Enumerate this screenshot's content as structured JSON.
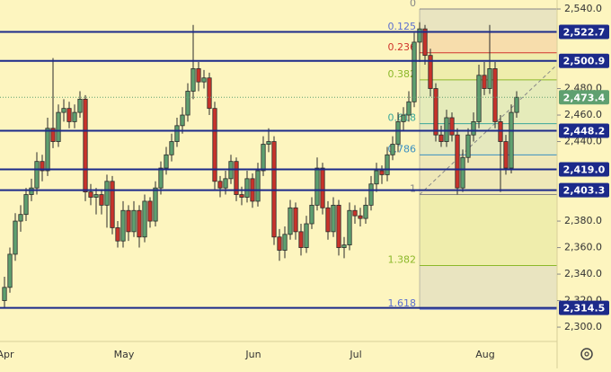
{
  "chart_data": {
    "type": "candlestick",
    "up_color": "#5fa070",
    "down_color": "#c8332b",
    "level_color": "#1c2a8a",
    "last_price_color": "#5fa070",
    "ylim": [
      2289.2,
      2546.8
    ],
    "yticks": [
      {
        "value": 2300,
        "label": "2,300.0"
      },
      {
        "value": 2320,
        "label": "2,320.0"
      },
      {
        "value": 2340,
        "label": "2,340.0"
      },
      {
        "value": 2360,
        "label": "2,360.0"
      },
      {
        "value": 2380,
        "label": "2,380.0"
      },
      {
        "value": 2440,
        "label": "2,440.0"
      },
      {
        "value": 2460,
        "label": "2,460.0"
      },
      {
        "value": 2480,
        "label": "2,480.0"
      },
      {
        "value": 2540,
        "label": "2,540.0"
      }
    ],
    "categories": [
      "Apr",
      null,
      null,
      null,
      null,
      null,
      null,
      null,
      null,
      null,
      null,
      null,
      null,
      null,
      null,
      null,
      null,
      null,
      null,
      null,
      null,
      null,
      "May",
      null,
      null,
      null,
      null,
      null,
      null,
      null,
      null,
      null,
      null,
      null,
      null,
      null,
      null,
      null,
      null,
      null,
      null,
      null,
      null,
      null,
      null,
      null,
      "Jun",
      null,
      null,
      null,
      null,
      null,
      null,
      null,
      null,
      null,
      null,
      null,
      null,
      null,
      null,
      null,
      null,
      null,
      null,
      "Jul",
      null,
      null,
      null,
      null,
      null,
      null,
      null,
      null,
      null,
      null,
      null,
      null,
      null,
      null,
      null,
      null,
      null,
      null,
      null,
      null,
      null,
      null,
      null,
      "Aug",
      null,
      null,
      null,
      null,
      null,
      null
    ],
    "candles": [
      [
        2320,
        2338,
        2315,
        2330
      ],
      [
        2330,
        2360,
        2326,
        2355
      ],
      [
        2355,
        2386,
        2350,
        2380
      ],
      [
        2380,
        2392,
        2372,
        2385
      ],
      [
        2385,
        2405,
        2380,
        2400
      ],
      [
        2400,
        2412,
        2395,
        2405
      ],
      [
        2405,
        2432,
        2400,
        2425
      ],
      [
        2425,
        2430,
        2410,
        2418
      ],
      [
        2418,
        2458,
        2414,
        2450
      ],
      [
        2450,
        2503,
        2435,
        2440
      ],
      [
        2440,
        2468,
        2436,
        2462
      ],
      [
        2462,
        2472,
        2455,
        2465
      ],
      [
        2465,
        2470,
        2450,
        2455
      ],
      [
        2455,
        2468,
        2450,
        2462
      ],
      [
        2462,
        2478,
        2458,
        2472
      ],
      [
        2472,
        2475,
        2395,
        2402
      ],
      [
        2402,
        2408,
        2392,
        2398
      ],
      [
        2398,
        2405,
        2385,
        2400
      ],
      [
        2400,
        2404,
        2385,
        2392
      ],
      [
        2392,
        2415,
        2375,
        2410
      ],
      [
        2410,
        2414,
        2370,
        2375
      ],
      [
        2375,
        2380,
        2360,
        2365
      ],
      [
        2365,
        2395,
        2360,
        2388
      ],
      [
        2388,
        2392,
        2365,
        2372
      ],
      [
        2372,
        2395,
        2368,
        2388
      ],
      [
        2388,
        2392,
        2360,
        2368
      ],
      [
        2368,
        2400,
        2364,
        2395
      ],
      [
        2395,
        2398,
        2375,
        2380
      ],
      [
        2380,
        2410,
        2376,
        2405
      ],
      [
        2405,
        2425,
        2400,
        2420
      ],
      [
        2420,
        2436,
        2415,
        2430
      ],
      [
        2430,
        2446,
        2425,
        2440
      ],
      [
        2440,
        2458,
        2436,
        2452
      ],
      [
        2452,
        2466,
        2446,
        2460
      ],
      [
        2460,
        2484,
        2455,
        2478
      ],
      [
        2478,
        2528,
        2472,
        2495
      ],
      [
        2495,
        2500,
        2478,
        2485
      ],
      [
        2485,
        2494,
        2480,
        2488
      ],
      [
        2488,
        2492,
        2460,
        2465
      ],
      [
        2465,
        2470,
        2404,
        2410
      ],
      [
        2410,
        2414,
        2398,
        2405
      ],
      [
        2405,
        2418,
        2400,
        2412
      ],
      [
        2412,
        2430,
        2408,
        2425
      ],
      [
        2425,
        2428,
        2395,
        2400
      ],
      [
        2400,
        2406,
        2392,
        2398
      ],
      [
        2398,
        2418,
        2394,
        2412
      ],
      [
        2412,
        2416,
        2390,
        2395
      ],
      [
        2395,
        2424,
        2391,
        2418
      ],
      [
        2418,
        2444,
        2414,
        2438
      ],
      [
        2438,
        2450,
        2432,
        2440
      ],
      [
        2440,
        2444,
        2362,
        2368
      ],
      [
        2368,
        2374,
        2350,
        2358
      ],
      [
        2358,
        2376,
        2352,
        2370
      ],
      [
        2370,
        2396,
        2366,
        2390
      ],
      [
        2390,
        2394,
        2366,
        2372
      ],
      [
        2372,
        2378,
        2354,
        2360
      ],
      [
        2360,
        2384,
        2356,
        2378
      ],
      [
        2378,
        2398,
        2374,
        2392
      ],
      [
        2392,
        2428,
        2388,
        2420
      ],
      [
        2420,
        2424,
        2385,
        2390
      ],
      [
        2390,
        2395,
        2366,
        2372
      ],
      [
        2372,
        2398,
        2368,
        2392
      ],
      [
        2392,
        2396,
        2354,
        2360
      ],
      [
        2360,
        2368,
        2352,
        2362
      ],
      [
        2362,
        2394,
        2358,
        2388
      ],
      [
        2388,
        2392,
        2378,
        2384
      ],
      [
        2384,
        2390,
        2376,
        2382
      ],
      [
        2382,
        2398,
        2378,
        2392
      ],
      [
        2392,
        2414,
        2388,
        2408
      ],
      [
        2408,
        2424,
        2402,
        2418
      ],
      [
        2418,
        2422,
        2408,
        2415
      ],
      [
        2415,
        2436,
        2410,
        2430
      ],
      [
        2430,
        2444,
        2426,
        2438
      ],
      [
        2438,
        2462,
        2432,
        2455
      ],
      [
        2455,
        2466,
        2448,
        2460
      ],
      [
        2460,
        2478,
        2455,
        2470
      ],
      [
        2470,
        2522,
        2466,
        2515
      ],
      [
        2515,
        2530,
        2500,
        2525
      ],
      [
        2525,
        2528,
        2498,
        2505
      ],
      [
        2505,
        2510,
        2474,
        2480
      ],
      [
        2480,
        2484,
        2440,
        2445
      ],
      [
        2445,
        2452,
        2436,
        2440
      ],
      [
        2440,
        2464,
        2436,
        2458
      ],
      [
        2458,
        2462,
        2440,
        2445
      ],
      [
        2445,
        2450,
        2400,
        2405
      ],
      [
        2405,
        2434,
        2402,
        2428
      ],
      [
        2428,
        2450,
        2424,
        2445
      ],
      [
        2445,
        2462,
        2440,
        2455
      ],
      [
        2455,
        2498,
        2450,
        2490
      ],
      [
        2490,
        2500,
        2475,
        2480
      ],
      [
        2480,
        2528,
        2476,
        2495
      ],
      [
        2495,
        2500,
        2450,
        2455
      ],
      [
        2455,
        2460,
        2402,
        2440
      ],
      [
        2440,
        2445,
        2415,
        2420
      ],
      [
        2420,
        2468,
        2416,
        2462
      ],
      [
        2462,
        2478,
        2458,
        2473.4
      ]
    ],
    "last_price_label": "2,473.4",
    "levels": [
      {
        "value": 2522.7,
        "label": "2,522.7"
      },
      {
        "value": 2500.9,
        "label": "2,500.9"
      },
      {
        "value": 2448.2,
        "label": "2,448.2"
      },
      {
        "value": 2419.0,
        "label": "2,419.0"
      },
      {
        "value": 2403.3,
        "label": "2,403.3"
      },
      {
        "value": 2314.5,
        "label": "2,314.5"
      }
    ],
    "fib_high": 2540,
    "fib_low": 2400,
    "fib_start_index": 77,
    "fib_levels": [
      {
        "ratio": 0,
        "color": "#888888"
      },
      {
        "ratio": 0.125,
        "color": "#5b6fd0"
      },
      {
        "ratio": 0.236,
        "color": "#d0342c"
      },
      {
        "ratio": 0.382,
        "color": "#8cb82a"
      },
      {
        "ratio": 0.618,
        "color": "#3aa89a"
      },
      {
        "ratio": 0.786,
        "color": "#3a8fc0"
      },
      {
        "ratio": 1,
        "color": "#888888"
      },
      {
        "ratio": 1.382,
        "color": "#8cb82a"
      },
      {
        "ratio": 1.618,
        "color": "#5b6fd0"
      }
    ]
  }
}
